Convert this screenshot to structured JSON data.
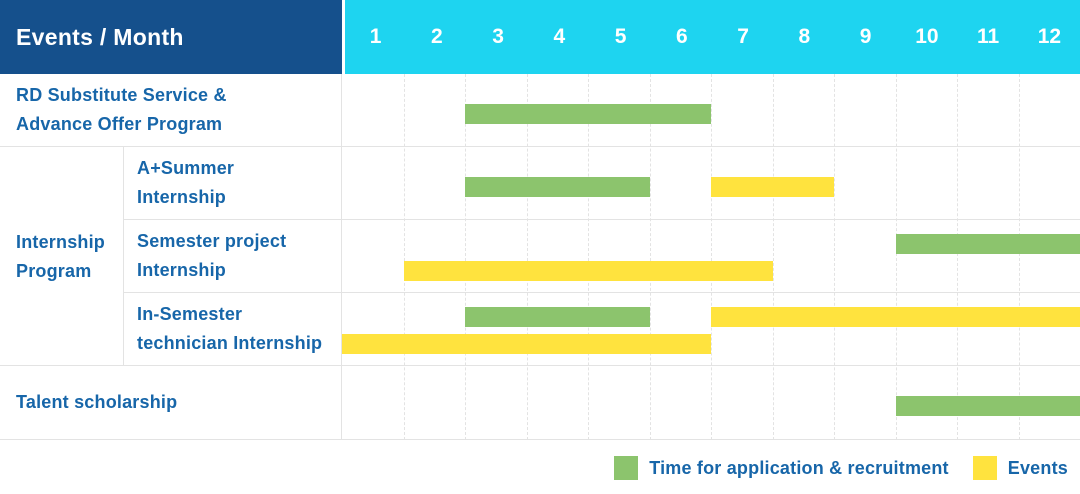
{
  "header": {
    "title": "Events / Month",
    "months": [
      "1",
      "2",
      "3",
      "4",
      "5",
      "6",
      "7",
      "8",
      "9",
      "10",
      "11",
      "12"
    ]
  },
  "colors": {
    "header_bg": "#15508C",
    "months_bg": "#1ED4F0",
    "header_text": "#FFFFFF",
    "label_text": "#1766A9",
    "green": "#8CC46D",
    "yellow": "#FFE33E",
    "grid_line": "#E3E3E3"
  },
  "legend": [
    {
      "key": "green",
      "label": "Time for application & recruitment"
    },
    {
      "key": "yellow",
      "label": "Events"
    }
  ],
  "chart_data": {
    "type": "bar",
    "variant": "gantt",
    "title": "Events / Month",
    "x_categories": [
      1,
      2,
      3,
      4,
      5,
      6,
      7,
      8,
      9,
      10,
      11,
      12
    ],
    "x_range": [
      1,
      12
    ],
    "grid": true,
    "legend_position": "bottom-right",
    "legend": [
      {
        "key": "green",
        "label": "Time for application & recruitment",
        "color": "#8CC46D"
      },
      {
        "key": "yellow",
        "label": "Events",
        "color": "#FFE33E"
      }
    ],
    "group": {
      "label": "Internship Program",
      "label_lines": [
        "Internship",
        "Program"
      ],
      "row_indexes": [
        1,
        2,
        3
      ]
    },
    "rows": [
      {
        "label": "RD Substitute Service & Advance Offer Program",
        "label_lines": [
          "RD Substitute Service &",
          "Advance Offer Program"
        ],
        "group": null,
        "lines": [
          [
            {
              "type": "green",
              "start_month": 3,
              "end_month": 6
            }
          ]
        ]
      },
      {
        "label": "A+Summer Internship",
        "label_lines": [
          "A+Summer",
          "Internship"
        ],
        "group": "Internship Program",
        "lines": [
          [
            {
              "type": "green",
              "start_month": 3,
              "end_month": 5
            },
            {
              "type": "yellow",
              "start_month": 7,
              "end_month": 8
            }
          ]
        ]
      },
      {
        "label": "Semester project Internship",
        "label_lines": [
          "Semester project",
          "Internship"
        ],
        "group": "Internship Program",
        "lines": [
          [
            {
              "type": "green",
              "start_month": 10,
              "end_month": 12
            }
          ],
          [
            {
              "type": "yellow",
              "start_month": 2,
              "end_month": 7
            }
          ]
        ]
      },
      {
        "label": "In-Semester technician Internship",
        "label_lines": [
          "In-Semester",
          "technician Internship"
        ],
        "group": "Internship Program",
        "lines": [
          [
            {
              "type": "green",
              "start_month": 3,
              "end_month": 5
            },
            {
              "type": "yellow",
              "start_month": 7,
              "end_month": 12
            }
          ],
          [
            {
              "type": "yellow",
              "start_month": 1,
              "end_month": 6
            }
          ]
        ]
      },
      {
        "label": "Talent scholarship",
        "label_lines": [
          "Talent scholarship"
        ],
        "group": null,
        "lines": [
          [
            {
              "type": "green",
              "start_month": 10,
              "end_month": 12
            }
          ]
        ]
      }
    ]
  }
}
